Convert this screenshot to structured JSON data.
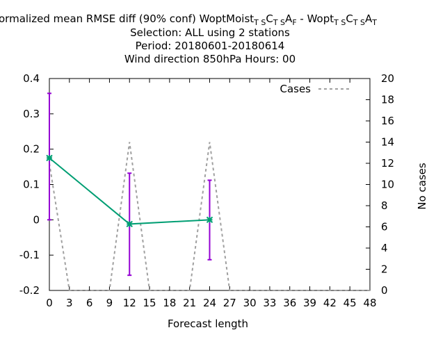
{
  "title": {
    "line1_prefix": "ormalized mean RMSE diff (90% conf) WoptMoist",
    "line1_sub1": "T S",
    "line1_mid1": "C",
    "line1_sub2": "T S",
    "line1_mid2": "A",
    "line1_sub3": "F",
    "line1_mid3": " - Wopt",
    "line1_sub4": "T S",
    "line1_mid4": "C",
    "line1_sub5": "T S",
    "line1_mid5": "A",
    "line1_sub6": "T",
    "line2": "Selection: ALL using     2 stations",
    "line3": "Period: 20180601-20180614",
    "line4": "Wind direction 850hPa   Hours:  00"
  },
  "colors": {
    "series": "#009e73",
    "errorbar": "#9400d3",
    "cases": "#a0a0a0",
    "axis": "#000000"
  },
  "chart_data": {
    "type": "line",
    "xlabel": "Forecast length",
    "ylabel": "",
    "y2label": "No cases",
    "xlim": [
      0,
      48
    ],
    "ylim": [
      -0.2,
      0.4
    ],
    "y2lim": [
      0,
      20
    ],
    "x_ticks": [
      "0",
      "3",
      "6",
      "9",
      "12",
      "15",
      "18",
      "21",
      "24",
      "27",
      "30",
      "33",
      "36",
      "39",
      "42",
      "45",
      "48"
    ],
    "y_ticks": [
      "-0.2",
      "-0.1",
      "0",
      "0.1",
      "0.2",
      "0.3",
      "0.4"
    ],
    "y2_ticks": [
      "0",
      "2",
      "4",
      "6",
      "8",
      "10",
      "12",
      "14",
      "16",
      "18",
      "20"
    ],
    "legend": {
      "position": "top-right",
      "label": "Cases"
    },
    "series": [
      {
        "x": [
          0,
          12,
          24
        ],
        "y": [
          0.175,
          -0.012,
          0.0
        ],
        "err_low": [
          0.0,
          -0.157,
          -0.113
        ],
        "err_high": [
          0.358,
          0.132,
          0.112
        ]
      }
    ],
    "cases": {
      "x": [
        0,
        3,
        9,
        12,
        15,
        21,
        24,
        27,
        48
      ],
      "y": [
        12,
        0,
        0,
        14,
        0,
        0,
        14,
        0,
        0
      ]
    }
  }
}
